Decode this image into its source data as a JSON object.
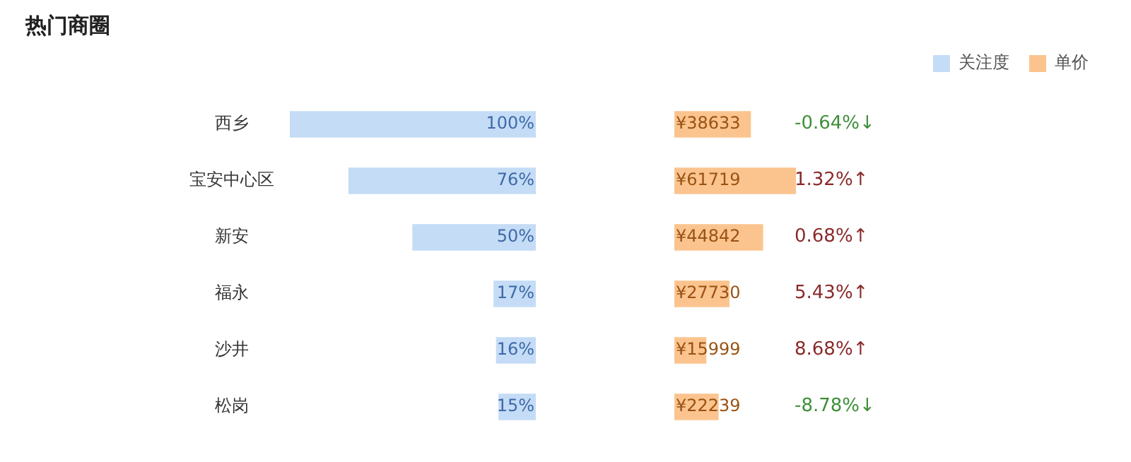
{
  "chart_data": {
    "type": "bar",
    "orientation": "horizontal",
    "title": "热门商圈",
    "legend": "top right",
    "categories": [
      "西乡",
      "宝安中心区",
      "新安",
      "福永",
      "沙井",
      "松岗"
    ],
    "series": [
      {
        "name": "关注度",
        "color": "#c5dcf6",
        "values": [
          100,
          76,
          50,
          17,
          16,
          15
        ],
        "value_labels": [
          "100%",
          "76%",
          "50%",
          "17%",
          "16%",
          "15%"
        ]
      },
      {
        "name": "单价",
        "color": "#fbc48f",
        "values": [
          38633,
          61719,
          44842,
          27730,
          15999,
          22239
        ],
        "value_labels": [
          "¥38633",
          "¥61719",
          "¥44842",
          "¥27730",
          "¥15999",
          "¥22239"
        ]
      }
    ],
    "annotations": [
      "-0.64%↓",
      "1.32%↑",
      "0.68%↑",
      "5.43%↑",
      "8.68%↑",
      "-8.78%↓"
    ]
  }
}
